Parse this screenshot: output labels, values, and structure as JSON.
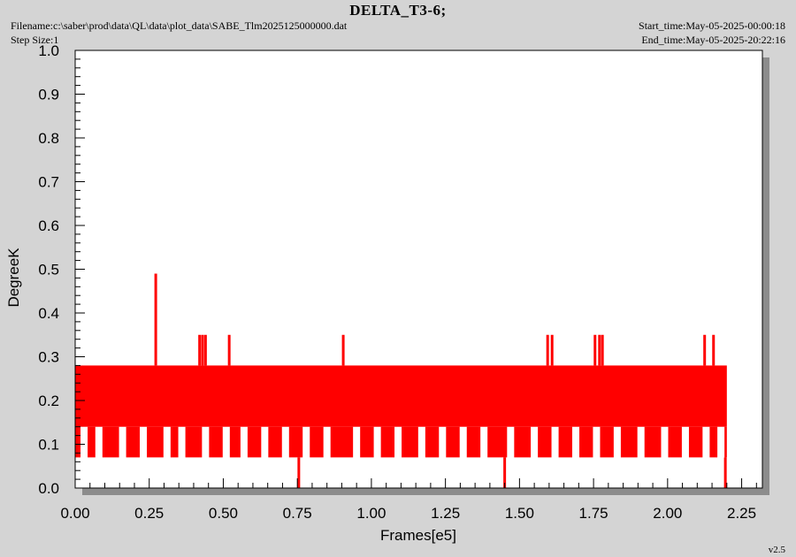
{
  "header": {
    "title": "DELTA_T3-6;",
    "filename": "Filename:c:\\saber\\prod\\data\\QL\\data\\plot_data\\SABE_Tlm2025125000000.dat",
    "step_size": "Step Size:1",
    "start_time": "Start_time:May-05-2025-00:00:18",
    "end_time": "End_time:May-05-2025-20:22:16",
    "version": "v2.5"
  },
  "colors": {
    "series": "#ff0000",
    "background": "#d4d4d4",
    "plot_bg": "#ffffff",
    "shadow": "#8c8c8c"
  },
  "chart_data": {
    "type": "line",
    "title": "DELTA_T3-6;",
    "xlabel": "Frames[e5]",
    "ylabel": "DegreeK",
    "xlim": [
      0.0,
      2.32
    ],
    "ylim": [
      0.0,
      1.0
    ],
    "xticks": [
      "0.00",
      "0.25",
      "0.50",
      "0.75",
      "1.00",
      "1.25",
      "1.50",
      "1.75",
      "2.00",
      "2.25"
    ],
    "yticks": [
      "0.0",
      "0.1",
      "0.2",
      "0.3",
      "0.4",
      "0.5",
      "0.6",
      "0.7",
      "0.8",
      "0.9",
      "1.0"
    ],
    "grid": false,
    "series": [
      {
        "x_range": [
          0.0,
          2.2
        ],
        "levels": [
          0.07,
          0.14,
          0.21,
          0.28
        ],
        "lower_gaps": [
          0.03,
          0.08,
          0.16,
          0.23,
          0.31,
          0.36,
          0.44,
          0.51,
          0.57,
          0.64,
          0.71,
          0.78,
          0.85,
          0.95,
          1.02,
          1.09,
          1.17,
          1.24,
          1.31,
          1.38,
          1.47,
          1.55,
          1.62,
          1.69,
          1.76,
          1.83,
          1.91,
          1.99,
          2.06,
          2.13,
          2.18
        ],
        "dropouts": [
          {
            "x": 0.755,
            "y": 0.0
          },
          {
            "x": 1.45,
            "y": 0.0
          },
          {
            "x": 2.195,
            "y": 0.0
          }
        ],
        "spikes": [
          {
            "x": 0.272,
            "y": 0.49
          },
          {
            "x": 0.42,
            "y": 0.35
          },
          {
            "x": 0.43,
            "y": 0.35
          },
          {
            "x": 0.44,
            "y": 0.35
          },
          {
            "x": 0.52,
            "y": 0.35
          },
          {
            "x": 0.905,
            "y": 0.35
          },
          {
            "x": 1.595,
            "y": 0.35
          },
          {
            "x": 1.61,
            "y": 0.35
          },
          {
            "x": 1.755,
            "y": 0.35
          },
          {
            "x": 1.77,
            "y": 0.35
          },
          {
            "x": 1.78,
            "y": 0.35
          },
          {
            "x": 2.125,
            "y": 0.35
          },
          {
            "x": 2.155,
            "y": 0.35
          }
        ]
      }
    ]
  }
}
